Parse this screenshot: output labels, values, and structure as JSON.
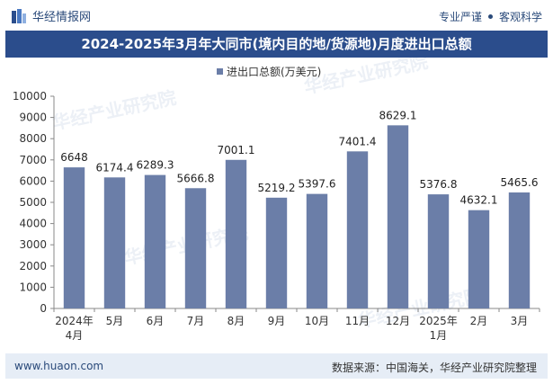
{
  "header": {
    "brand": "华经情报网",
    "tag_left": "专业严谨",
    "tag_right": "客观科学"
  },
  "title": "2024-2025年3月年大同市(境内目的地/货源地)月度进出口总额",
  "footer": {
    "website": "www.huaon.com",
    "source": "数据来源：中国海关，华经产业研究院整理"
  },
  "watermark": "华经产业研究院",
  "colors": {
    "bar": "#6b7ea8",
    "title_bg": "#2b4d8c",
    "footer_bg": "#e6edf6"
  },
  "chart_data": {
    "type": "bar",
    "categories": [
      "2024年\n4月",
      "5月",
      "6月",
      "7月",
      "8月",
      "9月",
      "10月",
      "11月",
      "12月",
      "2025年\n1月",
      "2月",
      "3月"
    ],
    "series": [
      {
        "name": "进出口总额(万美元)",
        "values": [
          6648,
          6174.4,
          6289.3,
          5666.8,
          7001.1,
          5219.2,
          5397.6,
          7401.4,
          8629.1,
          5376.8,
          4632.1,
          5465.6
        ]
      }
    ],
    "value_labels": [
      "6648",
      "6174.4",
      "6289.3",
      "5666.8",
      "7001.1",
      "5219.2",
      "5397.6",
      "7401.4",
      "8629.1",
      "5376.8",
      "4632.1",
      "5465.6"
    ],
    "ylim": [
      0,
      10000
    ],
    "yticks": [
      0,
      1000,
      2000,
      3000,
      4000,
      5000,
      6000,
      7000,
      8000,
      9000,
      10000
    ],
    "legend_position": "top-center",
    "grid": false
  }
}
